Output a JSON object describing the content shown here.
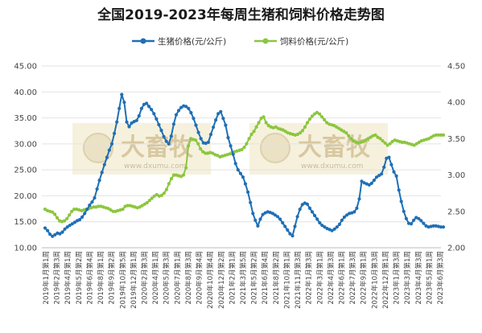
{
  "chart_data": {
    "type": "line",
    "title": "全国2019-2023年每周生猪和饲料价格走势图",
    "legend_position": "top",
    "grid": true,
    "y_left": {
      "min": 10,
      "max": 45,
      "step": 5,
      "ticks": [
        "10.00",
        "15.00",
        "20.00",
        "25.00",
        "30.00",
        "35.00",
        "40.00",
        "45.00"
      ]
    },
    "y_right": {
      "min": 2.0,
      "max": 4.5,
      "step": 0.5,
      "ticks": [
        "2.00",
        "2.50",
        "3.00",
        "3.50",
        "4.00",
        "4.50"
      ]
    },
    "x_tick_labels": [
      "2019年1月第1周",
      "2019年2月第3周",
      "2019年4月第1周",
      "2019年5月第2周",
      "2019年6月第4周",
      "2019年8月第1周",
      "2019年9月第2周",
      "2019年10月第5周",
      "2019年12月第1周",
      "2020年2月第3周",
      "2020年4月第1周",
      "2020年5月第3周",
      "2020年7月第1周",
      "2020年8月第3周",
      "2020年9月第4周",
      "2020年10月第4周",
      "2020年12月第2周",
      "2021年2月第1周",
      "2021年3月第5周",
      "2021年5月第2周",
      "2021年6月第4周",
      "2021年8月第2周",
      "2021年10月第1周",
      "2021年11月第3周",
      "2022年1月第3周",
      "2022年3月第1周",
      "2022年4月第3周",
      "2022年6月第1周",
      "2022年7月第3周",
      "2022年9月第1周",
      "2022年10月第3周",
      "2022年12月第1周",
      "2023年1月第3周",
      "2023年3月第1周",
      "2023年4月第3周",
      "2023年5月第1周",
      "2023年6月第3周"
    ],
    "series": [
      {
        "name": "生猪价格(元/公斤)",
        "axis": "left",
        "color": "#1f6fb5",
        "values": [
          13.8,
          13.3,
          12.6,
          12.2,
          12.5,
          12.8,
          12.7,
          13.0,
          13.6,
          14.0,
          14.3,
          14.6,
          14.9,
          15.2,
          15.4,
          15.9,
          16.6,
          17.4,
          18.2,
          18.8,
          19.6,
          21.3,
          23.0,
          24.5,
          26.0,
          27.4,
          28.8,
          30.0,
          32.0,
          34.2,
          36.8,
          39.5,
          38.0,
          34.2,
          33.3,
          34.0,
          34.3,
          34.5,
          35.4,
          36.8,
          37.6,
          37.8,
          37.2,
          36.6,
          35.8,
          34.8,
          33.7,
          32.6,
          31.4,
          30.5,
          30.0,
          31.5,
          33.8,
          35.6,
          36.4,
          37.0,
          37.3,
          37.2,
          36.8,
          36.0,
          34.9,
          33.6,
          32.2,
          31.0,
          30.2,
          30.1,
          30.3,
          31.8,
          33.2,
          34.6,
          35.8,
          36.2,
          34.9,
          33.6,
          31.2,
          29.6,
          28.0,
          26.2,
          25.0,
          24.3,
          23.6,
          22.3,
          20.7,
          18.7,
          16.6,
          15.3,
          14.2,
          15.5,
          16.4,
          16.7,
          16.9,
          16.8,
          16.6,
          16.3,
          16.0,
          15.5,
          14.8,
          14.1,
          13.4,
          12.7,
          12.3,
          14.1,
          16.0,
          17.4,
          18.3,
          18.6,
          18.4,
          17.6,
          16.9,
          16.2,
          15.5,
          14.8,
          14.3,
          14.0,
          13.7,
          13.5,
          13.3,
          13.6,
          14.0,
          14.5,
          15.3,
          15.9,
          16.3,
          16.6,
          16.7,
          16.9,
          17.6,
          19.4,
          22.8,
          22.5,
          22.3,
          22.1,
          22.4,
          23.0,
          23.6,
          23.9,
          24.2,
          25.5,
          27.2,
          27.4,
          26.0,
          24.6,
          23.8,
          21.1,
          18.9,
          17.0,
          15.6,
          14.7,
          14.6,
          15.3,
          15.8,
          15.6,
          15.2,
          14.7,
          14.2,
          14.0,
          14.1,
          14.2,
          14.2,
          14.1,
          14.0,
          14.0
        ]
      },
      {
        "name": "饲料价格(元/公斤)",
        "axis": "right",
        "color": "#8cc63f",
        "values": [
          2.53,
          2.51,
          2.5,
          2.49,
          2.46,
          2.41,
          2.37,
          2.36,
          2.37,
          2.4,
          2.45,
          2.5,
          2.53,
          2.53,
          2.52,
          2.51,
          2.52,
          2.53,
          2.54,
          2.55,
          2.56,
          2.56,
          2.57,
          2.57,
          2.56,
          2.55,
          2.54,
          2.52,
          2.5,
          2.5,
          2.51,
          2.52,
          2.53,
          2.57,
          2.58,
          2.58,
          2.57,
          2.56,
          2.55,
          2.56,
          2.58,
          2.6,
          2.62,
          2.65,
          2.68,
          2.71,
          2.73,
          2.71,
          2.72,
          2.75,
          2.8,
          2.88,
          2.95,
          3.0,
          3.0,
          2.99,
          2.98,
          3.0,
          3.1,
          3.4,
          3.5,
          3.49,
          3.48,
          3.43,
          3.36,
          3.32,
          3.3,
          3.3,
          3.31,
          3.3,
          3.28,
          3.27,
          3.25,
          3.26,
          3.27,
          3.28,
          3.29,
          3.31,
          3.32,
          3.33,
          3.34,
          3.35,
          3.38,
          3.43,
          3.5,
          3.56,
          3.6,
          3.66,
          3.72,
          3.78,
          3.8,
          3.72,
          3.68,
          3.66,
          3.65,
          3.66,
          3.64,
          3.63,
          3.62,
          3.6,
          3.58,
          3.57,
          3.56,
          3.55,
          3.56,
          3.58,
          3.61,
          3.66,
          3.72,
          3.77,
          3.81,
          3.84,
          3.86,
          3.84,
          3.8,
          3.76,
          3.72,
          3.7,
          3.69,
          3.68,
          3.66,
          3.64,
          3.62,
          3.6,
          3.58,
          3.54,
          3.5,
          3.47,
          3.45,
          3.44,
          3.45,
          3.46,
          3.48,
          3.5,
          3.52,
          3.54,
          3.55,
          3.52,
          3.5,
          3.47,
          3.44,
          3.41,
          3.43,
          3.46,
          3.48,
          3.47,
          3.46,
          3.45,
          3.45,
          3.44,
          3.43,
          3.42,
          3.41,
          3.43,
          3.45,
          3.47,
          3.48,
          3.49,
          3.5,
          3.52,
          3.54,
          3.55,
          3.55,
          3.55,
          3.55
        ]
      }
    ],
    "watermark": {
      "text": "大畜牧",
      "url": "www.dxumu.com"
    }
  }
}
